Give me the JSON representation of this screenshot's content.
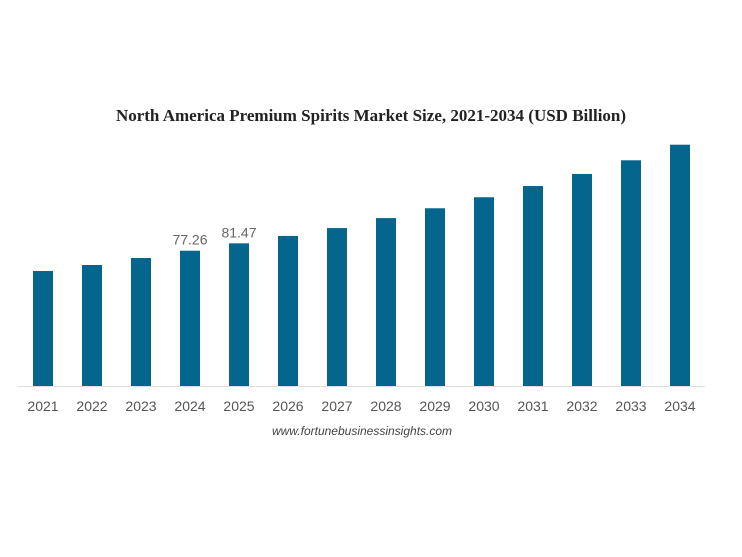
{
  "chart_data": {
    "type": "bar",
    "title": "North America Premium Spirits Market Size, 2021-2034 (USD Billion)",
    "xlabel": "",
    "ylabel": "",
    "categories": [
      "2021",
      "2022",
      "2023",
      "2024",
      "2025",
      "2026",
      "2027",
      "2028",
      "2029",
      "2030",
      "2031",
      "2032",
      "2033",
      "2034"
    ],
    "values": [
      65.7,
      69.1,
      73.1,
      77.26,
      81.47,
      85.7,
      90.2,
      95.9,
      101.5,
      107.8,
      114.2,
      121.1,
      128.9,
      137.8
    ],
    "data_labels": {
      "2024": "77.26",
      "2025": "81.47"
    },
    "ylim": [
      0,
      140
    ],
    "grid": false,
    "bar_color": "#05668d",
    "source": "www.fortunebusinessinsights.com"
  }
}
